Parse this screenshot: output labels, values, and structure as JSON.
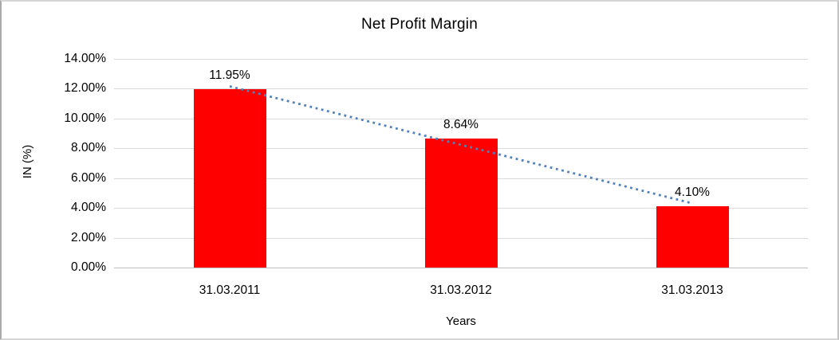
{
  "chart_data": {
    "type": "bar",
    "title": "Net Profit Margin",
    "xlabel": "Years",
    "ylabel": "IN (%)",
    "categories": [
      "31.03.2011",
      "31.03.2012",
      "31.03.2013"
    ],
    "values": [
      11.95,
      8.64,
      4.1
    ],
    "data_labels": [
      "11.95%",
      "8.64%",
      "4.10%"
    ],
    "y_ticks": [
      "14.00%",
      "12.00%",
      "10.00%",
      "8.00%",
      "6.00%",
      "4.00%",
      "2.00%",
      "0.00%"
    ],
    "ylim": [
      0,
      14
    ],
    "y_tick_step": 2,
    "grid": "horizontal",
    "legend_position": "none",
    "bar_color": "#ff0000",
    "gridline_color": "#d9d9d9",
    "axis_line_color": "#bfbfbf",
    "text_color": "#000000",
    "trendline": {
      "type": "linear",
      "style": "dotted",
      "color": "#4f81bd",
      "start_value_pct": 12.16,
      "end_value_pct": 4.31
    }
  }
}
